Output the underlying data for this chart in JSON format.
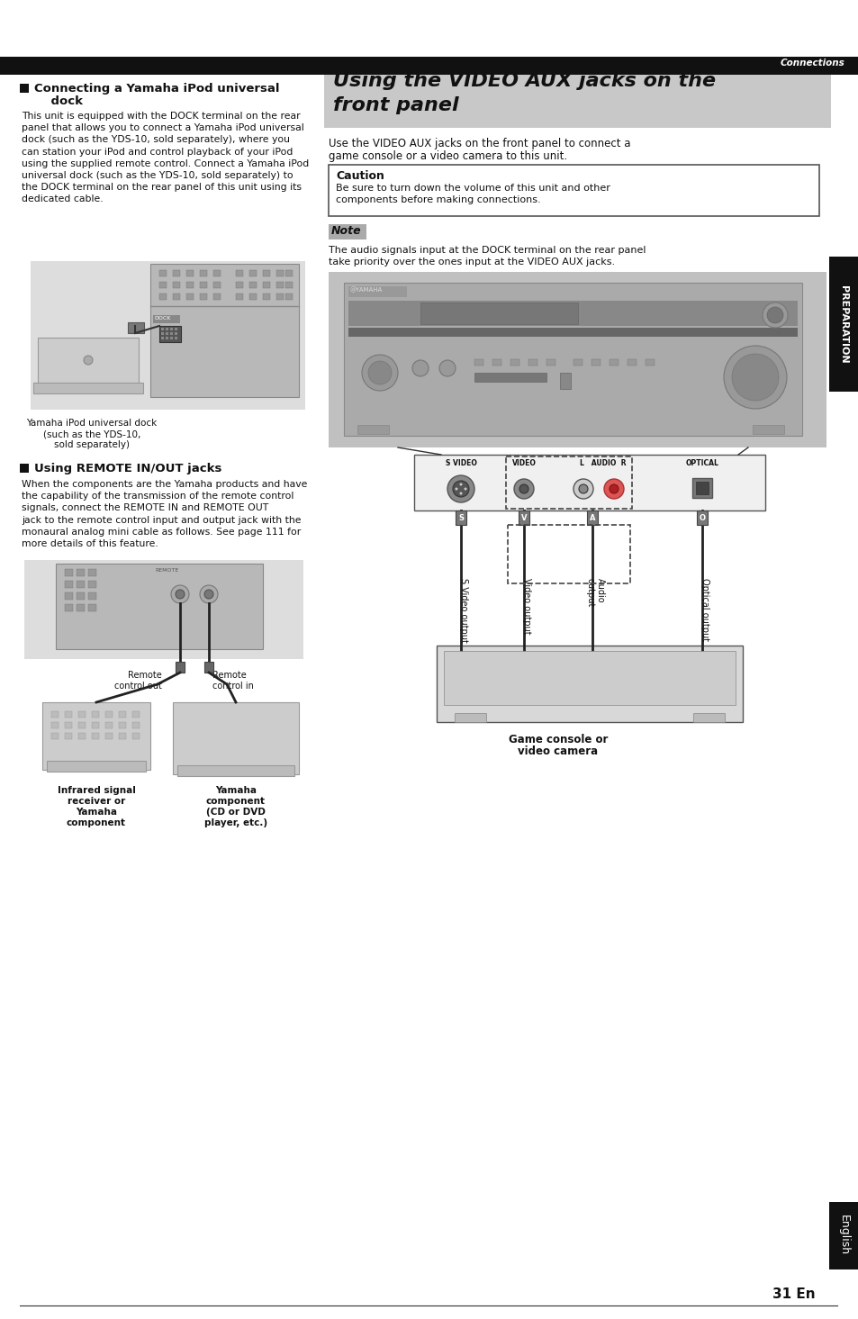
{
  "bg_color": "#ffffff",
  "page_width": 9.54,
  "page_height": 14.65,
  "dpi": 100,
  "top_bar_color": "#111111",
  "top_bar_text": "Connections",
  "top_bar_text_color": "#ffffff",
  "section1_heading_line1": "Connecting a Yamaha iPod universal",
  "section1_heading_line2": "    dock",
  "section1_body": "This unit is equipped with the DOCK terminal on the rear\npanel that allows you to connect a Yamaha iPod universal\ndock (such as the YDS-10, sold separately), where you\ncan station your iPod and control playback of your iPod\nusing the supplied remote control. Connect a Yamaha iPod\nuniversal dock (such as the YDS-10, sold separately) to\nthe DOCK terminal on the rear panel of this unit using its\ndedicated cable.",
  "section2_heading": "Using REMOTE IN/OUT jacks",
  "section2_body": "When the components are the Yamaha products and have\nthe capability of the transmission of the remote control\nsignals, connect the REMOTE IN and REMOTE OUT\njack to the remote control input and output jack with the\nmonaural analog mini cable as follows. See page 111 for\nmore details of this feature.",
  "right_title_bg": "#c8c8c8",
  "right_title_line1": "Using the VIDEO AUX jacks on the",
  "right_title_line2": "front panel",
  "right_intro_line1": "Use the VIDEO AUX jacks on the front panel to connect a",
  "right_intro_line2": "game console or a video camera to this unit.",
  "caution_title": "Caution",
  "caution_body_line1": "Be sure to turn down the volume of this unit and other",
  "caution_body_line2": "components before making connections.",
  "note_title": "Note",
  "note_body_line1": "The audio signals input at the DOCK terminal on the rear panel",
  "note_body_line2": "take priority over the ones input at the VIDEO AUX jacks.",
  "preparation_sidebar": "PREPARATION",
  "english_sidebar": "English",
  "page_number": "31 En",
  "left_caption1_line1": "Yamaha iPod universal dock",
  "left_caption1_line2": "(such as the YDS-10,",
  "left_caption1_line3": "sold separately)",
  "remote_caption_left_l1": "Remote",
  "remote_caption_left_l2": "control out",
  "remote_caption_right_l1": "Remote",
  "remote_caption_right_l2": "control in",
  "bottom_caption_left_l1": "Infrared signal",
  "bottom_caption_left_l2": "receiver or",
  "bottom_caption_left_l3": "Yamaha",
  "bottom_caption_left_l4": "component",
  "bottom_caption_right_l1": "Yamaha",
  "bottom_caption_right_l2": "component",
  "bottom_caption_right_l3": "(CD or DVD",
  "bottom_caption_right_l4": "player, etc.)",
  "game_console_caption_l1": "Game console or",
  "game_console_caption_l2": "video camera",
  "conn_label_1": "S Video output",
  "conn_label_2": "Video output",
  "conn_label_3": "Audio\noutput",
  "conn_label_4": "Optical output",
  "svideo_label": "S VIDEO",
  "video_label": "VIDEO",
  "audio_label": "L   AUDIO  R",
  "optical_label": "OPTICAL"
}
